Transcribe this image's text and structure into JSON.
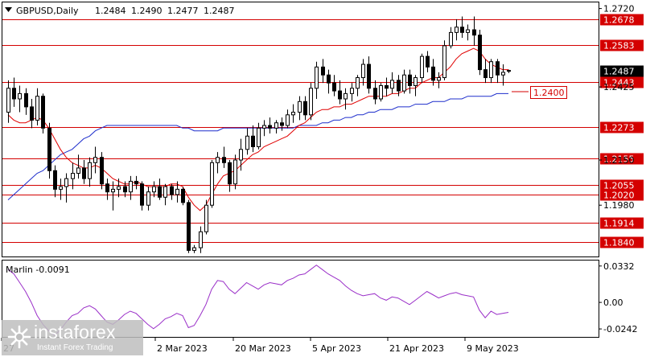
{
  "chart_data": {
    "type": "candlestick",
    "symbol": "GBPUSD,Daily",
    "ohlc_readout": [
      "1.2484",
      "1.2490",
      "1.2477",
      "1.2487"
    ],
    "price_axis_ticks": [
      "1.2720",
      "1.2425",
      "1.2150",
      "1.1980"
    ],
    "price_ylim": [
      1.179,
      1.274
    ],
    "last_price": "1.2487",
    "horizontal_levels": [
      "1.2678",
      "1.2583",
      "1.2443",
      "1.2273",
      "1.2155",
      "1.2055",
      "1.2020",
      "1.1914",
      "1.1840"
    ],
    "annotation": "1.2400",
    "x_labels": [
      "27",
      "2 Mar 2023",
      "20 Mar 2023",
      "5 Apr 2023",
      "21 Apr 2023",
      "9 May 2023"
    ],
    "candles": [
      [
        1.233,
        1.245,
        1.229,
        1.242
      ],
      [
        1.242,
        1.246,
        1.235,
        1.238
      ],
      [
        1.238,
        1.243,
        1.233,
        1.24
      ],
      [
        1.24,
        1.242,
        1.232,
        1.235
      ],
      [
        1.235,
        1.238,
        1.227,
        1.23
      ],
      [
        1.23,
        1.242,
        1.228,
        1.239
      ],
      [
        1.239,
        1.24,
        1.225,
        1.227
      ],
      [
        1.227,
        1.229,
        1.208,
        1.211
      ],
      [
        1.211,
        1.213,
        1.201,
        1.204
      ],
      [
        1.204,
        1.208,
        1.2,
        1.205
      ],
      [
        1.205,
        1.21,
        1.199,
        1.208
      ],
      [
        1.208,
        1.214,
        1.204,
        1.21
      ],
      [
        1.21,
        1.217,
        1.208,
        1.212
      ],
      [
        1.212,
        1.215,
        1.206,
        1.208
      ],
      [
        1.208,
        1.216,
        1.205,
        1.214
      ],
      [
        1.214,
        1.22,
        1.21,
        1.216
      ],
      [
        1.216,
        1.218,
        1.204,
        1.206
      ],
      [
        1.206,
        1.208,
        1.2,
        1.203
      ],
      [
        1.203,
        1.207,
        1.196,
        1.204
      ],
      [
        1.204,
        1.208,
        1.201,
        1.205
      ],
      [
        1.205,
        1.207,
        1.201,
        1.203
      ],
      [
        1.203,
        1.209,
        1.2,
        1.207
      ],
      [
        1.207,
        1.209,
        1.204,
        1.206
      ],
      [
        1.206,
        1.207,
        1.196,
        1.198
      ],
      [
        1.198,
        1.205,
        1.196,
        1.203
      ],
      [
        1.203,
        1.207,
        1.201,
        1.205
      ],
      [
        1.205,
        1.208,
        1.2,
        1.201
      ],
      [
        1.201,
        1.206,
        1.198,
        1.205
      ],
      [
        1.205,
        1.206,
        1.2,
        1.202
      ],
      [
        1.202,
        1.207,
        1.199,
        1.204
      ],
      [
        1.204,
        1.205,
        1.198,
        1.199
      ],
      [
        1.199,
        1.2,
        1.18,
        1.181
      ],
      [
        1.181,
        1.183,
        1.18,
        1.182
      ],
      [
        1.182,
        1.19,
        1.18,
        1.188
      ],
      [
        1.188,
        1.2,
        1.187,
        1.198
      ],
      [
        1.198,
        1.215,
        1.197,
        1.214
      ],
      [
        1.214,
        1.218,
        1.21,
        1.216
      ],
      [
        1.216,
        1.22,
        1.212,
        1.214
      ],
      [
        1.214,
        1.215,
        1.203,
        1.206
      ],
      [
        1.206,
        1.217,
        1.204,
        1.215
      ],
      [
        1.215,
        1.223,
        1.211,
        1.219
      ],
      [
        1.219,
        1.227,
        1.217,
        1.224
      ],
      [
        1.224,
        1.228,
        1.218,
        1.22
      ],
      [
        1.22,
        1.229,
        1.219,
        1.227
      ],
      [
        1.227,
        1.23,
        1.224,
        1.228
      ],
      [
        1.228,
        1.231,
        1.225,
        1.227
      ],
      [
        1.227,
        1.23,
        1.225,
        1.229
      ],
      [
        1.229,
        1.231,
        1.226,
        1.228
      ],
      [
        1.228,
        1.234,
        1.227,
        1.232
      ],
      [
        1.232,
        1.236,
        1.229,
        1.233
      ],
      [
        1.233,
        1.239,
        1.23,
        1.237
      ],
      [
        1.237,
        1.239,
        1.23,
        1.232
      ],
      [
        1.232,
        1.244,
        1.23,
        1.242
      ],
      [
        1.242,
        1.252,
        1.238,
        1.25
      ],
      [
        1.25,
        1.253,
        1.244,
        1.247
      ],
      [
        1.247,
        1.249,
        1.24,
        1.244
      ],
      [
        1.244,
        1.247,
        1.239,
        1.241
      ],
      [
        1.241,
        1.245,
        1.236,
        1.238
      ],
      [
        1.238,
        1.242,
        1.234,
        1.24
      ],
      [
        1.24,
        1.244,
        1.237,
        1.242
      ],
      [
        1.242,
        1.247,
        1.239,
        1.246
      ],
      [
        1.246,
        1.253,
        1.243,
        1.251
      ],
      [
        1.251,
        1.254,
        1.24,
        1.242
      ],
      [
        1.242,
        1.245,
        1.236,
        1.238
      ],
      [
        1.238,
        1.244,
        1.237,
        1.243
      ],
      [
        1.243,
        1.246,
        1.239,
        1.242
      ],
      [
        1.242,
        1.248,
        1.24,
        1.245
      ],
      [
        1.245,
        1.247,
        1.239,
        1.241
      ],
      [
        1.241,
        1.249,
        1.24,
        1.247
      ],
      [
        1.247,
        1.249,
        1.24,
        1.243
      ],
      [
        1.243,
        1.247,
        1.239,
        1.246
      ],
      [
        1.246,
        1.255,
        1.244,
        1.254
      ],
      [
        1.254,
        1.256,
        1.248,
        1.25
      ],
      [
        1.25,
        1.253,
        1.243,
        1.245
      ],
      [
        1.245,
        1.248,
        1.242,
        1.246
      ],
      [
        1.246,
        1.26,
        1.245,
        1.258
      ],
      [
        1.258,
        1.265,
        1.257,
        1.263
      ],
      [
        1.263,
        1.268,
        1.26,
        1.265
      ],
      [
        1.265,
        1.269,
        1.261,
        1.263
      ],
      [
        1.263,
        1.266,
        1.26,
        1.264
      ],
      [
        1.264,
        1.269,
        1.258,
        1.262
      ],
      [
        1.262,
        1.264,
        1.247,
        1.249
      ],
      [
        1.249,
        1.253,
        1.244,
        1.246
      ],
      [
        1.246,
        1.253,
        1.244,
        1.252
      ],
      [
        1.252,
        1.253,
        1.244,
        1.247
      ],
      [
        1.247,
        1.251,
        1.243,
        1.248
      ],
      [
        1.2484,
        1.249,
        1.2477,
        1.2487
      ]
    ],
    "ma_fast": [
      1.232,
      1.23,
      1.229,
      1.229,
      1.23,
      1.231,
      1.23,
      1.227,
      1.223,
      1.219,
      1.216,
      1.214,
      1.213,
      1.212,
      1.212,
      1.213,
      1.212,
      1.21,
      1.208,
      1.207,
      1.206,
      1.206,
      1.207,
      1.206,
      1.205,
      1.205,
      1.205,
      1.205,
      1.206,
      1.206,
      1.205,
      1.201,
      1.198,
      1.196,
      1.198,
      1.202,
      1.206,
      1.209,
      1.21,
      1.211,
      1.213,
      1.215,
      1.217,
      1.218,
      1.22,
      1.221,
      1.222,
      1.223,
      1.224,
      1.226,
      1.228,
      1.229,
      1.231,
      1.233,
      1.234,
      1.234,
      1.235,
      1.235,
      1.236,
      1.236,
      1.237,
      1.238,
      1.239,
      1.239,
      1.239,
      1.239,
      1.24,
      1.24,
      1.241,
      1.242,
      1.242,
      1.244,
      1.245,
      1.246,
      1.246,
      1.248,
      1.25,
      1.253,
      1.255,
      1.256,
      1.257,
      1.256,
      1.253,
      1.251,
      1.25,
      1.249,
      1.249
    ],
    "ma_slow": [
      1.2,
      1.202,
      1.204,
      1.206,
      1.208,
      1.21,
      1.211,
      1.213,
      1.215,
      1.217,
      1.218,
      1.219,
      1.221,
      1.223,
      1.224,
      1.226,
      1.227,
      1.228,
      1.228,
      1.228,
      1.228,
      1.228,
      1.228,
      1.228,
      1.228,
      1.228,
      1.228,
      1.228,
      1.228,
      1.228,
      1.227,
      1.227,
      1.226,
      1.226,
      1.226,
      1.226,
      1.226,
      1.227,
      1.227,
      1.227,
      1.227,
      1.227,
      1.227,
      1.227,
      1.227,
      1.227,
      1.227,
      1.227,
      1.227,
      1.227,
      1.228,
      1.228,
      1.228,
      1.228,
      1.229,
      1.229,
      1.23,
      1.23,
      1.231,
      1.231,
      1.232,
      1.232,
      1.233,
      1.233,
      1.234,
      1.234,
      1.234,
      1.235,
      1.235,
      1.235,
      1.236,
      1.236,
      1.236,
      1.237,
      1.237,
      1.237,
      1.238,
      1.238,
      1.238,
      1.239,
      1.239,
      1.239,
      1.239,
      1.239,
      1.24,
      1.24,
      1.24
    ],
    "oscillator": {
      "label": "Marlin -0.0091",
      "ticks": [
        "0.0332",
        "0.00",
        "-0.0242"
      ],
      "ylim": [
        -0.03,
        0.036
      ],
      "values": [
        0.03,
        0.026,
        0.018,
        0.01,
        0.0,
        -0.012,
        -0.02,
        -0.026,
        -0.03,
        -0.025,
        -0.018,
        -0.012,
        -0.01,
        -0.005,
        -0.003,
        -0.006,
        -0.012,
        -0.018,
        -0.02,
        -0.016,
        -0.011,
        -0.008,
        -0.01,
        -0.015,
        -0.02,
        -0.024,
        -0.02,
        -0.015,
        -0.013,
        -0.01,
        -0.012,
        -0.023,
        -0.021,
        -0.012,
        -0.002,
        0.012,
        0.02,
        0.019,
        0.012,
        0.008,
        0.013,
        0.018,
        0.015,
        0.012,
        0.016,
        0.018,
        0.017,
        0.016,
        0.02,
        0.022,
        0.025,
        0.026,
        0.03,
        0.034,
        0.03,
        0.026,
        0.023,
        0.02,
        0.015,
        0.011,
        0.008,
        0.006,
        0.007,
        0.008,
        0.004,
        0.002,
        0.005,
        0.004,
        0.001,
        -0.002,
        0.002,
        0.006,
        0.01,
        0.007,
        0.004,
        0.006,
        0.008,
        0.009,
        0.007,
        0.006,
        0.005,
        -0.007,
        -0.014,
        -0.008,
        -0.011,
        -0.01,
        -0.0091
      ]
    }
  },
  "watermark": {
    "name": "instaforex",
    "tagline": "Instant Forex Trading"
  },
  "colors": {
    "bull": "#ffffff",
    "bear": "#000000",
    "level": "#d40000",
    "ma_fast": "#e00000",
    "ma_slow": "#1f2fcc",
    "osc": "#9a2fc8",
    "grid": "#000000"
  }
}
